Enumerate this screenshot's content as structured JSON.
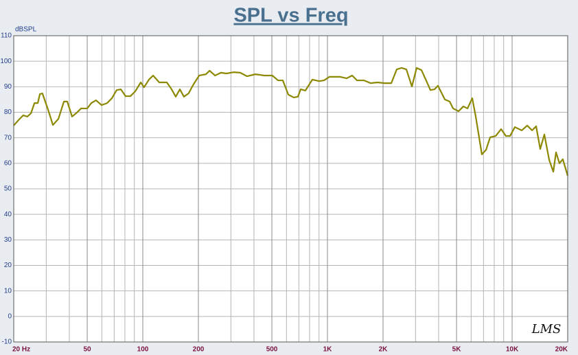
{
  "chart_data": {
    "type": "line",
    "title": "SPL vs Freq",
    "y_label": "dBSPL",
    "logo": "LMS",
    "x_log": true,
    "grid": true,
    "color": "#8c8800",
    "xlim": [
      20,
      20000
    ],
    "xticks": [
      {
        "value": 20,
        "label": "20  Hz"
      },
      50,
      100,
      200,
      500,
      {
        "value": 1000,
        "label": "1K"
      },
      {
        "value": 2000,
        "label": "2K"
      },
      {
        "value": 5000,
        "label": "5K"
      },
      {
        "value": 10000,
        "label": "10K"
      },
      {
        "value": 20000,
        "label": "20K"
      }
    ],
    "xminor_ticks": [
      30,
      40,
      60,
      70,
      80,
      90,
      300,
      400,
      600,
      700,
      800,
      900,
      3000,
      4000,
      6000,
      7000,
      8000,
      9000
    ],
    "ylim": [
      -10,
      110
    ],
    "yticks": [
      -10,
      0,
      10,
      20,
      30,
      40,
      50,
      60,
      70,
      80,
      90,
      100,
      110
    ],
    "x": [
      20,
      21.2,
      22.5,
      23.7,
      24.8,
      25.9,
      27.0,
      27.7,
      28.6,
      30.7,
      32.6,
      34.9,
      37.4,
      39.0,
      41.4,
      44.0,
      46.3,
      50,
      52.6,
      55.8,
      59.8,
      64.1,
      68.0,
      72.2,
      76.0,
      80.7,
      85.7,
      91.0,
      97.5,
      101.6,
      108,
      113.7,
      122.8,
      134.9,
      143.2,
      150.8,
      158.8,
      167,
      177,
      188,
      202,
      220,
      230,
      246,
      265,
      284,
      310,
      337,
      367,
      407,
      455,
      503,
      540,
      573,
      614,
      657,
      692,
      716,
      760,
      828,
      902,
      958,
      1026,
      1166,
      1270,
      1361,
      1445,
      1574,
      1714,
      1866,
      2033,
      2217,
      2372,
      2520,
      2675,
      2866,
      3041,
      3230,
      3398,
      3610,
      3802,
      3966,
      4323,
      4590,
      4790,
      5129,
      5446,
      5733,
      6083,
      6353,
      6859,
      7229,
      7604,
      8146,
      8716,
      9253,
      9740,
      10352,
      11270,
      12075,
      12823,
      13490,
      14200,
      14950,
      15880,
      16720,
      17290,
      18040,
      18820,
      20000
    ],
    "values": [
      74.8,
      76.9,
      78.8,
      78.3,
      79.6,
      83.6,
      83.6,
      87.1,
      87.4,
      81.0,
      75.0,
      77.4,
      84.2,
      84.2,
      78.3,
      79.9,
      81.5,
      81.5,
      83.6,
      84.7,
      82.8,
      83.6,
      85.5,
      88.7,
      89.0,
      86.3,
      86.3,
      88.2,
      91.7,
      89.8,
      92.8,
      94.4,
      91.7,
      91.7,
      89.0,
      86.1,
      89.0,
      86.1,
      87.4,
      90.9,
      94.4,
      94.9,
      96.3,
      94.4,
      95.5,
      95.2,
      95.7,
      95.5,
      94.1,
      94.9,
      94.4,
      94.4,
      92.5,
      92.5,
      86.9,
      85.8,
      86.1,
      89.0,
      88.5,
      92.8,
      92.2,
      92.5,
      93.9,
      93.9,
      93.3,
      94.4,
      92.5,
      92.5,
      91.4,
      91.7,
      91.4,
      91.4,
      96.8,
      97.4,
      96.8,
      90.1,
      97.4,
      96.5,
      93.0,
      88.7,
      89.0,
      90.4,
      85.0,
      84.2,
      81.5,
      80.4,
      82.3,
      81.5,
      85.5,
      78.3,
      63.5,
      65.3,
      70.2,
      70.7,
      73.4,
      70.7,
      70.7,
      74.2,
      72.9,
      74.8,
      72.9,
      74.5,
      65.6,
      71.3,
      61.3,
      56.7,
      64.3,
      60.0,
      61.6,
      55.1
    ]
  }
}
